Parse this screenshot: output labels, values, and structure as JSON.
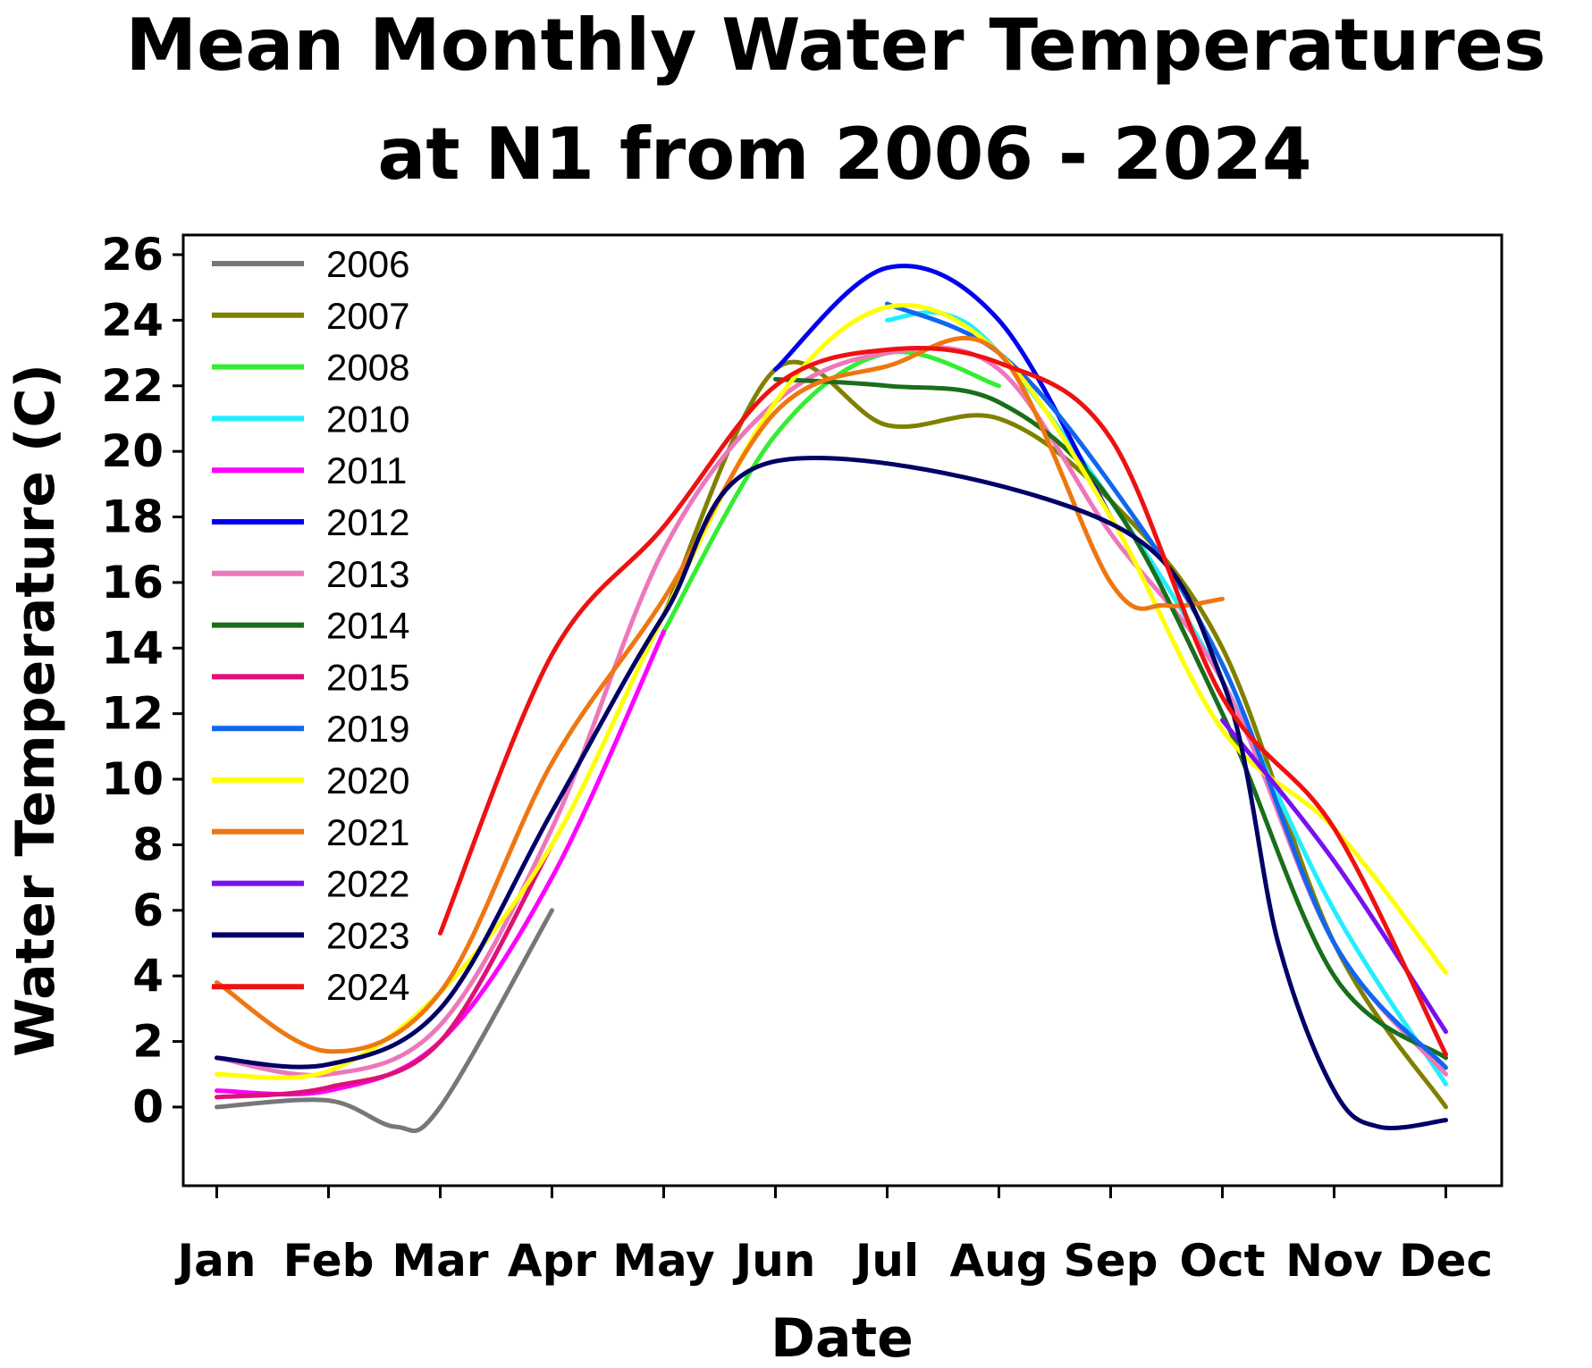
{
  "chart_data": {
    "type": "line",
    "title_line1": "Mean Monthly Water Temperatures",
    "title_line2": "at N1 from 2006 - 2024",
    "xlabel": "Date",
    "ylabel": "Water Temperature (C)",
    "ylim": [
      -2.4,
      26.6
    ],
    "yticks": [
      0,
      2,
      4,
      6,
      8,
      10,
      12,
      14,
      16,
      18,
      20,
      22,
      24,
      26
    ],
    "ytick_labels": [
      "0",
      "2",
      "4",
      "6",
      "8",
      "10",
      "12",
      "14",
      "16",
      "18",
      "20",
      "22",
      "24",
      "26"
    ],
    "xlim": [
      0.7,
      12.5
    ],
    "categories": [
      "Jan",
      "Feb",
      "Mar",
      "Apr",
      "May",
      "Jun",
      "Jul",
      "Aug",
      "Sep",
      "Oct",
      "Nov",
      "Dec"
    ],
    "legend_position": "top-left",
    "series": [
      {
        "name": "2006",
        "color": "#777777",
        "x": [
          1,
          2,
          2.6,
          3,
          4
        ],
        "y": [
          0,
          0.2,
          -0.6,
          0,
          6
        ]
      },
      {
        "name": "2007",
        "color": "#808000",
        "x": [
          5,
          6,
          7,
          8,
          9,
          10,
          11,
          12
        ],
        "y": [
          15,
          22.5,
          20.8,
          21,
          18.5,
          14,
          5,
          0
        ]
      },
      {
        "name": "2008",
        "color": "#33ee33",
        "x": [
          5,
          6,
          7,
          8
        ],
        "y": [
          14.5,
          20.5,
          23,
          22
        ]
      },
      {
        "name": "2010",
        "color": "#22eeff",
        "x": [
          7,
          7.5,
          8,
          9,
          10,
          11,
          12
        ],
        "y": [
          24,
          24.2,
          23,
          18.5,
          13,
          6,
          0.7
        ]
      },
      {
        "name": "2011",
        "color": "#ff00ff",
        "x": [
          1,
          2,
          3,
          4,
          5
        ],
        "y": [
          0.5,
          0.5,
          2,
          7,
          14.5
        ]
      },
      {
        "name": "2012",
        "color": "#0000ee",
        "x": [
          6,
          7,
          8,
          9
        ],
        "y": [
          22.5,
          25.6,
          24,
          18
        ]
      },
      {
        "name": "2013",
        "color": "#ee77bb",
        "x": [
          1,
          2,
          3,
          4,
          5,
          6,
          7,
          8,
          9,
          10,
          11,
          12
        ],
        "y": [
          1.5,
          1,
          2.5,
          8.5,
          17,
          21.5,
          23,
          22.5,
          17.5,
          13,
          5,
          1
        ]
      },
      {
        "name": "2014",
        "color": "#1a6e1a",
        "x": [
          6,
          7,
          8,
          9,
          10,
          11,
          12
        ],
        "y": [
          22.2,
          22,
          21.5,
          18.5,
          12,
          4,
          1.5
        ]
      },
      {
        "name": "2015",
        "color": "#dd1177",
        "x": [
          1,
          2,
          3,
          4
        ],
        "y": [
          0.3,
          0.6,
          2,
          8
        ]
      },
      {
        "name": "2019",
        "color": "#1166ee",
        "x": [
          7,
          8,
          9,
          10,
          11,
          12
        ],
        "y": [
          24.5,
          23,
          19,
          13.5,
          5,
          1.2
        ]
      },
      {
        "name": "2020",
        "color": "#ffff00",
        "x": [
          1,
          2,
          3,
          4,
          5,
          6,
          7,
          8,
          9,
          10,
          11,
          12
        ],
        "y": [
          1,
          1.1,
          3.5,
          8,
          15,
          21.5,
          24.4,
          23,
          18,
          11.5,
          8.5,
          4.1
        ]
      },
      {
        "name": "2021",
        "color": "#ee7711",
        "x": [
          1,
          2,
          3,
          4,
          5,
          6,
          7,
          8,
          9,
          9.5,
          10
        ],
        "y": [
          3.8,
          1.7,
          3.5,
          10.5,
          15.5,
          21.2,
          22.6,
          23,
          16,
          15.3,
          15.5
        ]
      },
      {
        "name": "2022",
        "color": "#7711ee",
        "x": [
          10,
          11,
          12
        ],
        "y": [
          11.8,
          7.5,
          2.3
        ]
      },
      {
        "name": "2023",
        "color": "#000066",
        "x": [
          1,
          2,
          3,
          4,
          5,
          6,
          9,
          10,
          10.5,
          11,
          11.4,
          12
        ],
        "y": [
          1.5,
          1.3,
          3,
          9,
          15,
          19.7,
          17.8,
          13,
          5,
          0.5,
          -0.6,
          -0.4
        ]
      },
      {
        "name": "2024",
        "color": "#ee1111",
        "x": [
          3,
          4,
          5,
          6,
          7,
          8,
          9,
          10,
          11,
          12
        ],
        "y": [
          5.3,
          13.8,
          17.7,
          22,
          23.1,
          22.7,
          20.4,
          12.5,
          8.5,
          1.6
        ]
      }
    ]
  }
}
